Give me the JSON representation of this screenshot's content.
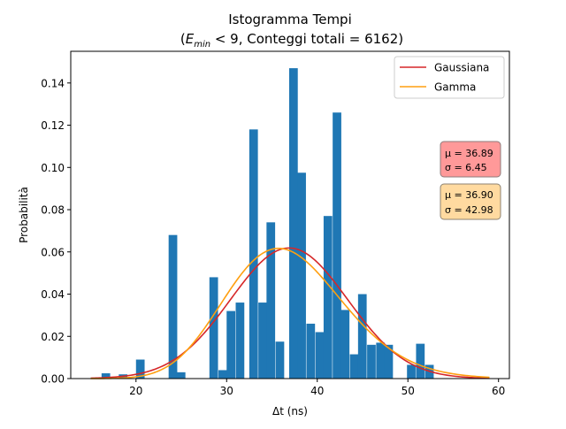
{
  "chart_data": {
    "type": "bar",
    "title": "Istogramma Tempi",
    "subtitle_parts": {
      "open": "(",
      "symbol": "E",
      "subscript": "min",
      "rest": " < 9, Conteggi totali = 6162)"
    },
    "xlabel": "Δt (ns)",
    "ylabel": "Probabilità",
    "xlim": [
      12.8,
      61.2
    ],
    "ylim": [
      0,
      0.155
    ],
    "xticks": [
      20,
      30,
      40,
      50,
      60
    ],
    "yticks": [
      0.0,
      0.02,
      0.04,
      0.06,
      0.08,
      0.1,
      0.12,
      0.14
    ],
    "ytick_labels": [
      "0.00",
      "0.02",
      "0.04",
      "0.06",
      "0.08",
      "0.10",
      "0.12",
      "0.14"
    ],
    "bar_color": "#1f77b4",
    "bins": [
      {
        "left": 16.2,
        "width": 0.95,
        "value": 0.0025
      },
      {
        "left": 18.1,
        "width": 0.95,
        "value": 0.002
      },
      {
        "left": 20.0,
        "width": 0.95,
        "value": 0.009
      },
      {
        "left": 23.6,
        "width": 0.95,
        "value": 0.068
      },
      {
        "left": 24.5,
        "width": 0.95,
        "value": 0.003
      },
      {
        "left": 28.1,
        "width": 0.95,
        "value": 0.048
      },
      {
        "left": 29.1,
        "width": 0.95,
        "value": 0.004
      },
      {
        "left": 30.0,
        "width": 0.95,
        "value": 0.032
      },
      {
        "left": 31.0,
        "width": 0.95,
        "value": 0.036
      },
      {
        "left": 32.5,
        "width": 0.95,
        "value": 0.118
      },
      {
        "left": 33.5,
        "width": 0.95,
        "value": 0.036
      },
      {
        "left": 34.4,
        "width": 0.95,
        "value": 0.074
      },
      {
        "left": 35.4,
        "width": 0.95,
        "value": 0.0175
      },
      {
        "left": 36.9,
        "width": 0.95,
        "value": 0.147
      },
      {
        "left": 37.8,
        "width": 0.95,
        "value": 0.0975
      },
      {
        "left": 38.8,
        "width": 0.95,
        "value": 0.026
      },
      {
        "left": 39.8,
        "width": 0.95,
        "value": 0.022
      },
      {
        "left": 40.7,
        "width": 0.95,
        "value": 0.077
      },
      {
        "left": 41.7,
        "width": 0.95,
        "value": 0.126
      },
      {
        "left": 42.6,
        "width": 0.95,
        "value": 0.0325
      },
      {
        "left": 43.6,
        "width": 0.95,
        "value": 0.0115
      },
      {
        "left": 44.5,
        "width": 0.95,
        "value": 0.04
      },
      {
        "left": 45.5,
        "width": 0.95,
        "value": 0.016
      },
      {
        "left": 46.5,
        "width": 0.95,
        "value": 0.017
      },
      {
        "left": 47.4,
        "width": 0.95,
        "value": 0.016
      },
      {
        "left": 49.9,
        "width": 0.95,
        "value": 0.0065
      },
      {
        "left": 50.9,
        "width": 0.95,
        "value": 0.0165
      },
      {
        "left": 51.9,
        "width": 0.95,
        "value": 0.0065
      }
    ],
    "series": [
      {
        "name": "Gaussiana",
        "kind": "gaussian",
        "color": "#d62728",
        "x_range": [
          15,
          59
        ],
        "params": {
          "mu": 36.89,
          "sigma": 6.45,
          "scale": 1.0
        }
      },
      {
        "name": "Gamma",
        "kind": "gamma",
        "color": "#ff9f10",
        "x_range": [
          15,
          59
        ],
        "params": {
          "mean": 36.9,
          "variance": 42.98
        }
      }
    ],
    "legend_placement": "top-right",
    "info_boxes": [
      {
        "id": "gauss",
        "line1": "μ = 36.89",
        "line2": "σ = 6.45",
        "fill": "#ff9999",
        "border": "#8c7b7b"
      },
      {
        "id": "gamma",
        "line1": "μ = 36.90",
        "line2": "σ = 42.98",
        "fill": "#ffdaa0",
        "border": "#8c8270"
      }
    ],
    "grid": false
  }
}
